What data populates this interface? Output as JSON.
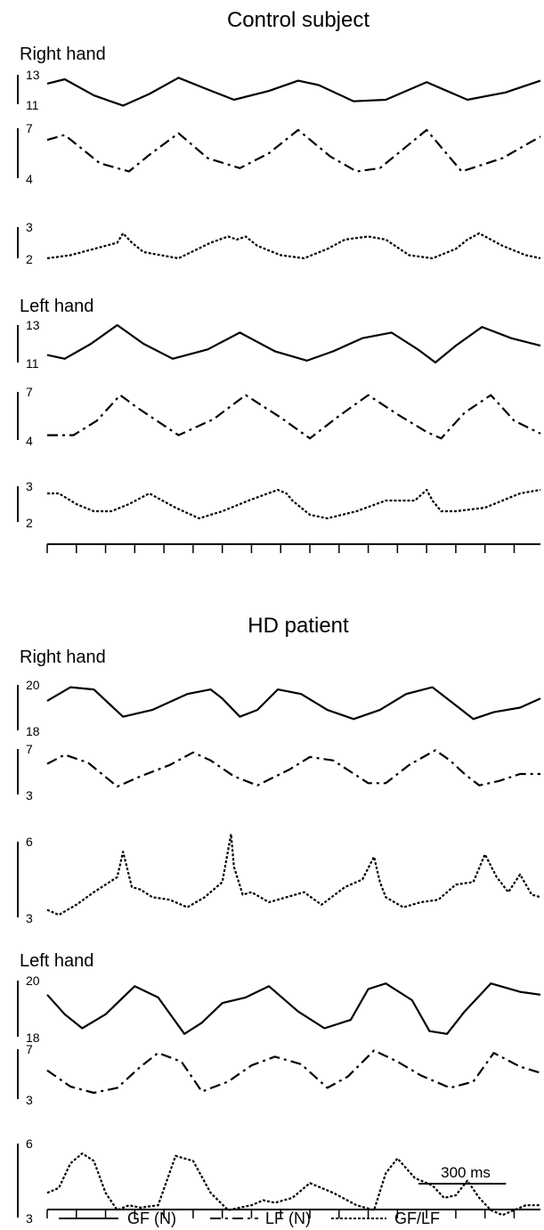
{
  "chart_data": {
    "type": "line",
    "x_unit": "ms",
    "scalebar": {
      "label": "300 ms",
      "ms": 300
    },
    "legend": [
      {
        "label": "GF (N)",
        "style": "solid"
      },
      {
        "label": "LF (N)",
        "style": "dashdot"
      },
      {
        "label": "GF/LF",
        "style": "dotted"
      }
    ],
    "groups": [
      {
        "title": "Control subject",
        "panels": [
          {
            "label": "Right hand",
            "traces": [
              {
                "name": "GF (N)",
                "style": "solid",
                "ylim": [
                  11,
                  13
                ],
                "x": [
                  0,
                  60,
                  160,
                  260,
                  350,
                  450,
                  550,
                  640,
                  760,
                  860,
                  930,
                  1050,
                  1160,
                  1300,
                  1440,
                  1570,
                  1690
                ],
                "y": [
                  12.4,
                  12.7,
                  11.6,
                  10.9,
                  11.7,
                  12.8,
                  12.0,
                  11.3,
                  11.9,
                  12.6,
                  12.3,
                  11.2,
                  11.3,
                  12.5,
                  11.3,
                  11.8,
                  12.6
                ]
              },
              {
                "name": "LF (N)",
                "style": "dashdot",
                "ylim": [
                  4,
                  7
                ],
                "x": [
                  0,
                  60,
                  180,
                  280,
                  350,
                  450,
                  550,
                  660,
                  760,
                  860,
                  970,
                  1060,
                  1140,
                  1300,
                  1420,
                  1560,
                  1690
                ],
                "y": [
                  6.3,
                  6.6,
                  4.9,
                  4.4,
                  5.4,
                  6.7,
                  5.2,
                  4.6,
                  5.5,
                  6.9,
                  5.3,
                  4.4,
                  4.6,
                  6.9,
                  4.4,
                  5.2,
                  6.5
                ]
              },
              {
                "name": "GF/LF",
                "style": "dotted",
                "ylim": [
                  2,
                  3
                ],
                "x": [
                  0,
                  80,
                  160,
                  240,
                  260,
                  290,
                  330,
                  390,
                  450,
                  560,
                  620,
                  650,
                  680,
                  720,
                  800,
                  880,
                  960,
                  1020,
                  1100,
                  1160,
                  1240,
                  1320,
                  1400,
                  1440,
                  1480,
                  1560,
                  1640,
                  1690
                ],
                "y": [
                  2.0,
                  2.1,
                  2.3,
                  2.5,
                  2.8,
                  2.5,
                  2.2,
                  2.1,
                  2.0,
                  2.5,
                  2.7,
                  2.6,
                  2.7,
                  2.4,
                  2.1,
                  2.0,
                  2.3,
                  2.6,
                  2.7,
                  2.6,
                  2.1,
                  2.0,
                  2.3,
                  2.6,
                  2.8,
                  2.4,
                  2.1,
                  2.0
                ]
              }
            ]
          },
          {
            "label": "Left hand",
            "traces": [
              {
                "name": "GF (N)",
                "style": "solid",
                "ylim": [
                  11,
                  13
                ],
                "x": [
                  0,
                  60,
                  150,
                  240,
                  330,
                  430,
                  550,
                  660,
                  780,
                  890,
                  980,
                  1080,
                  1180,
                  1270,
                  1330,
                  1400,
                  1490,
                  1590,
                  1690
                ],
                "y": [
                  11.4,
                  11.2,
                  12.0,
                  13.0,
                  12.0,
                  11.2,
                  11.7,
                  12.6,
                  11.6,
                  11.1,
                  11.6,
                  12.3,
                  12.6,
                  11.7,
                  11.0,
                  11.9,
                  12.9,
                  12.3,
                  11.9
                ]
              },
              {
                "name": "LF (N)",
                "style": "dashdot",
                "ylim": [
                  4,
                  7
                ],
                "x": [
                  0,
                  90,
                  170,
                  250,
                  310,
                  450,
                  570,
                  680,
                  800,
                  900,
                  1000,
                  1100,
                  1200,
                  1300,
                  1350,
                  1430,
                  1520,
                  1600,
                  1690
                ],
                "y": [
                  4.3,
                  4.3,
                  5.2,
                  6.8,
                  6.0,
                  4.3,
                  5.3,
                  6.8,
                  5.4,
                  4.1,
                  5.5,
                  6.8,
                  5.6,
                  4.5,
                  4.1,
                  5.7,
                  6.8,
                  5.2,
                  4.4
                ]
              },
              {
                "name": "GF/LF",
                "style": "dotted",
                "ylim": [
                  2,
                  3
                ],
                "x": [
                  0,
                  40,
                  100,
                  160,
                  220,
                  280,
                  350,
                  440,
                  520,
                  600,
                  690,
                  790,
                  820,
                  840,
                  900,
                  960,
                  1060,
                  1160,
                  1260,
                  1300,
                  1320,
                  1350,
                  1400,
                  1500,
                  1560,
                  1620,
                  1690
                ],
                "y": [
                  2.8,
                  2.8,
                  2.5,
                  2.3,
                  2.3,
                  2.5,
                  2.8,
                  2.4,
                  2.1,
                  2.3,
                  2.6,
                  2.9,
                  2.8,
                  2.6,
                  2.2,
                  2.1,
                  2.3,
                  2.6,
                  2.6,
                  2.9,
                  2.6,
                  2.3,
                  2.3,
                  2.4,
                  2.6,
                  2.8,
                  2.9
                ]
              }
            ]
          }
        ]
      },
      {
        "title": "HD patient",
        "panels": [
          {
            "label": "Right hand",
            "traces": [
              {
                "name": "GF (N)",
                "style": "solid",
                "ylim": [
                  18,
                  20
                ],
                "x": [
                  0,
                  80,
                  160,
                  260,
                  360,
                  480,
                  560,
                  600,
                  660,
                  720,
                  790,
                  870,
                  960,
                  1050,
                  1140,
                  1230,
                  1320,
                  1400,
                  1460,
                  1530,
                  1620,
                  1690
                ],
                "y": [
                  19.3,
                  19.9,
                  19.8,
                  18.6,
                  18.9,
                  19.6,
                  19.8,
                  19.4,
                  18.6,
                  18.9,
                  19.8,
                  19.6,
                  18.9,
                  18.5,
                  18.9,
                  19.6,
                  19.9,
                  19.1,
                  18.5,
                  18.8,
                  19.0,
                  19.4
                ]
              },
              {
                "name": "LF (N)",
                "style": "dashdot",
                "ylim": [
                  3,
                  7
                ],
                "x": [
                  0,
                  60,
                  140,
                  240,
                  320,
                  420,
                  500,
                  560,
                  640,
                  720,
                  830,
                  900,
                  980,
                  1100,
                  1160,
                  1240,
                  1330,
                  1380,
                  1430,
                  1480,
                  1550,
                  1620,
                  1690
                ],
                "y": [
                  5.7,
                  6.5,
                  5.8,
                  3.7,
                  4.6,
                  5.6,
                  6.7,
                  6.0,
                  4.6,
                  3.8,
                  5.2,
                  6.3,
                  6.0,
                  4.0,
                  4.0,
                  5.6,
                  6.9,
                  6.0,
                  4.8,
                  3.8,
                  4.2,
                  4.8,
                  4.8
                ]
              },
              {
                "name": "GF/LF",
                "style": "dotted",
                "ylim": [
                  3,
                  6
                ],
                "x": [
                  0,
                  40,
                  100,
                  160,
                  200,
                  240,
                  260,
                  290,
                  320,
                  360,
                  420,
                  480,
                  540,
                  600,
                  630,
                  640,
                  670,
                  700,
                  760,
                  820,
                  880,
                  940,
                  1020,
                  1080,
                  1120,
                  1140,
                  1160,
                  1220,
                  1280,
                  1340,
                  1400,
                  1460,
                  1500,
                  1540,
                  1580,
                  1620,
                  1660,
                  1690
                ],
                "y": [
                  3.3,
                  3.1,
                  3.5,
                  4.0,
                  4.3,
                  4.6,
                  5.6,
                  4.2,
                  4.1,
                  3.8,
                  3.7,
                  3.4,
                  3.8,
                  4.4,
                  6.3,
                  5.0,
                  3.9,
                  4.0,
                  3.6,
                  3.8,
                  4.0,
                  3.5,
                  4.2,
                  4.5,
                  5.4,
                  4.4,
                  3.8,
                  3.4,
                  3.6,
                  3.7,
                  4.3,
                  4.4,
                  5.5,
                  4.6,
                  4.0,
                  4.7,
                  3.9,
                  3.8
                ]
              }
            ]
          },
          {
            "label": "Left hand",
            "traces": [
              {
                "name": "GF (N)",
                "style": "solid",
                "ylim": [
                  18,
                  20
                ],
                "x": [
                  0,
                  60,
                  120,
                  200,
                  300,
                  380,
                  470,
                  530,
                  600,
                  680,
                  760,
                  860,
                  950,
                  1040,
                  1100,
                  1160,
                  1250,
                  1310,
                  1370,
                  1430,
                  1520,
                  1620,
                  1690
                ],
                "y": [
                  19.5,
                  18.8,
                  18.3,
                  18.8,
                  19.8,
                  19.4,
                  18.1,
                  18.5,
                  19.2,
                  19.4,
                  19.8,
                  18.9,
                  18.3,
                  18.6,
                  19.7,
                  19.9,
                  19.3,
                  18.2,
                  18.1,
                  18.9,
                  19.9,
                  19.6,
                  19.5
                ]
              },
              {
                "name": "LF (N)",
                "style": "dashdot",
                "ylim": [
                  3,
                  7
                ],
                "x": [
                  0,
                  80,
                  160,
                  240,
                  320,
                  380,
                  460,
                  530,
                  620,
                  700,
                  780,
                  870,
                  960,
                  1030,
                  1120,
                  1200,
                  1280,
                  1380,
                  1460,
                  1530,
                  1620,
                  1690
                ],
                "y": [
                  5.3,
                  4.0,
                  3.5,
                  3.9,
                  5.6,
                  6.7,
                  6.0,
                  3.6,
                  4.4,
                  5.7,
                  6.4,
                  5.8,
                  3.9,
                  4.8,
                  6.9,
                  6.0,
                  4.9,
                  3.9,
                  4.4,
                  6.7,
                  5.6,
                  5.1
                ]
              },
              {
                "name": "GF/LF",
                "style": "dotted",
                "ylim": [
                  3,
                  6
                ],
                "x": [
                  0,
                  40,
                  80,
                  120,
                  160,
                  200,
                  240,
                  280,
                  320,
                  380,
                  440,
                  500,
                  560,
                  620,
                  660,
                  700,
                  740,
                  780,
                  840,
                  900,
                  980,
                  1060,
                  1120,
                  1160,
                  1200,
                  1260,
                  1320,
                  1360,
                  1400,
                  1440,
                  1480,
                  1520,
                  1560,
                  1600,
                  1640,
                  1690
                ],
                "y": [
                  4.0,
                  4.2,
                  5.2,
                  5.6,
                  5.3,
                  4.0,
                  3.3,
                  3.5,
                  3.4,
                  3.5,
                  5.5,
                  5.3,
                  4.0,
                  3.3,
                  3.4,
                  3.5,
                  3.7,
                  3.6,
                  3.8,
                  4.4,
                  4.0,
                  3.5,
                  3.3,
                  4.8,
                  5.4,
                  4.6,
                  4.3,
                  3.8,
                  3.9,
                  4.5,
                  3.8,
                  3.3,
                  3.1,
                  3.3,
                  3.5,
                  3.5
                ]
              }
            ]
          }
        ]
      }
    ]
  }
}
